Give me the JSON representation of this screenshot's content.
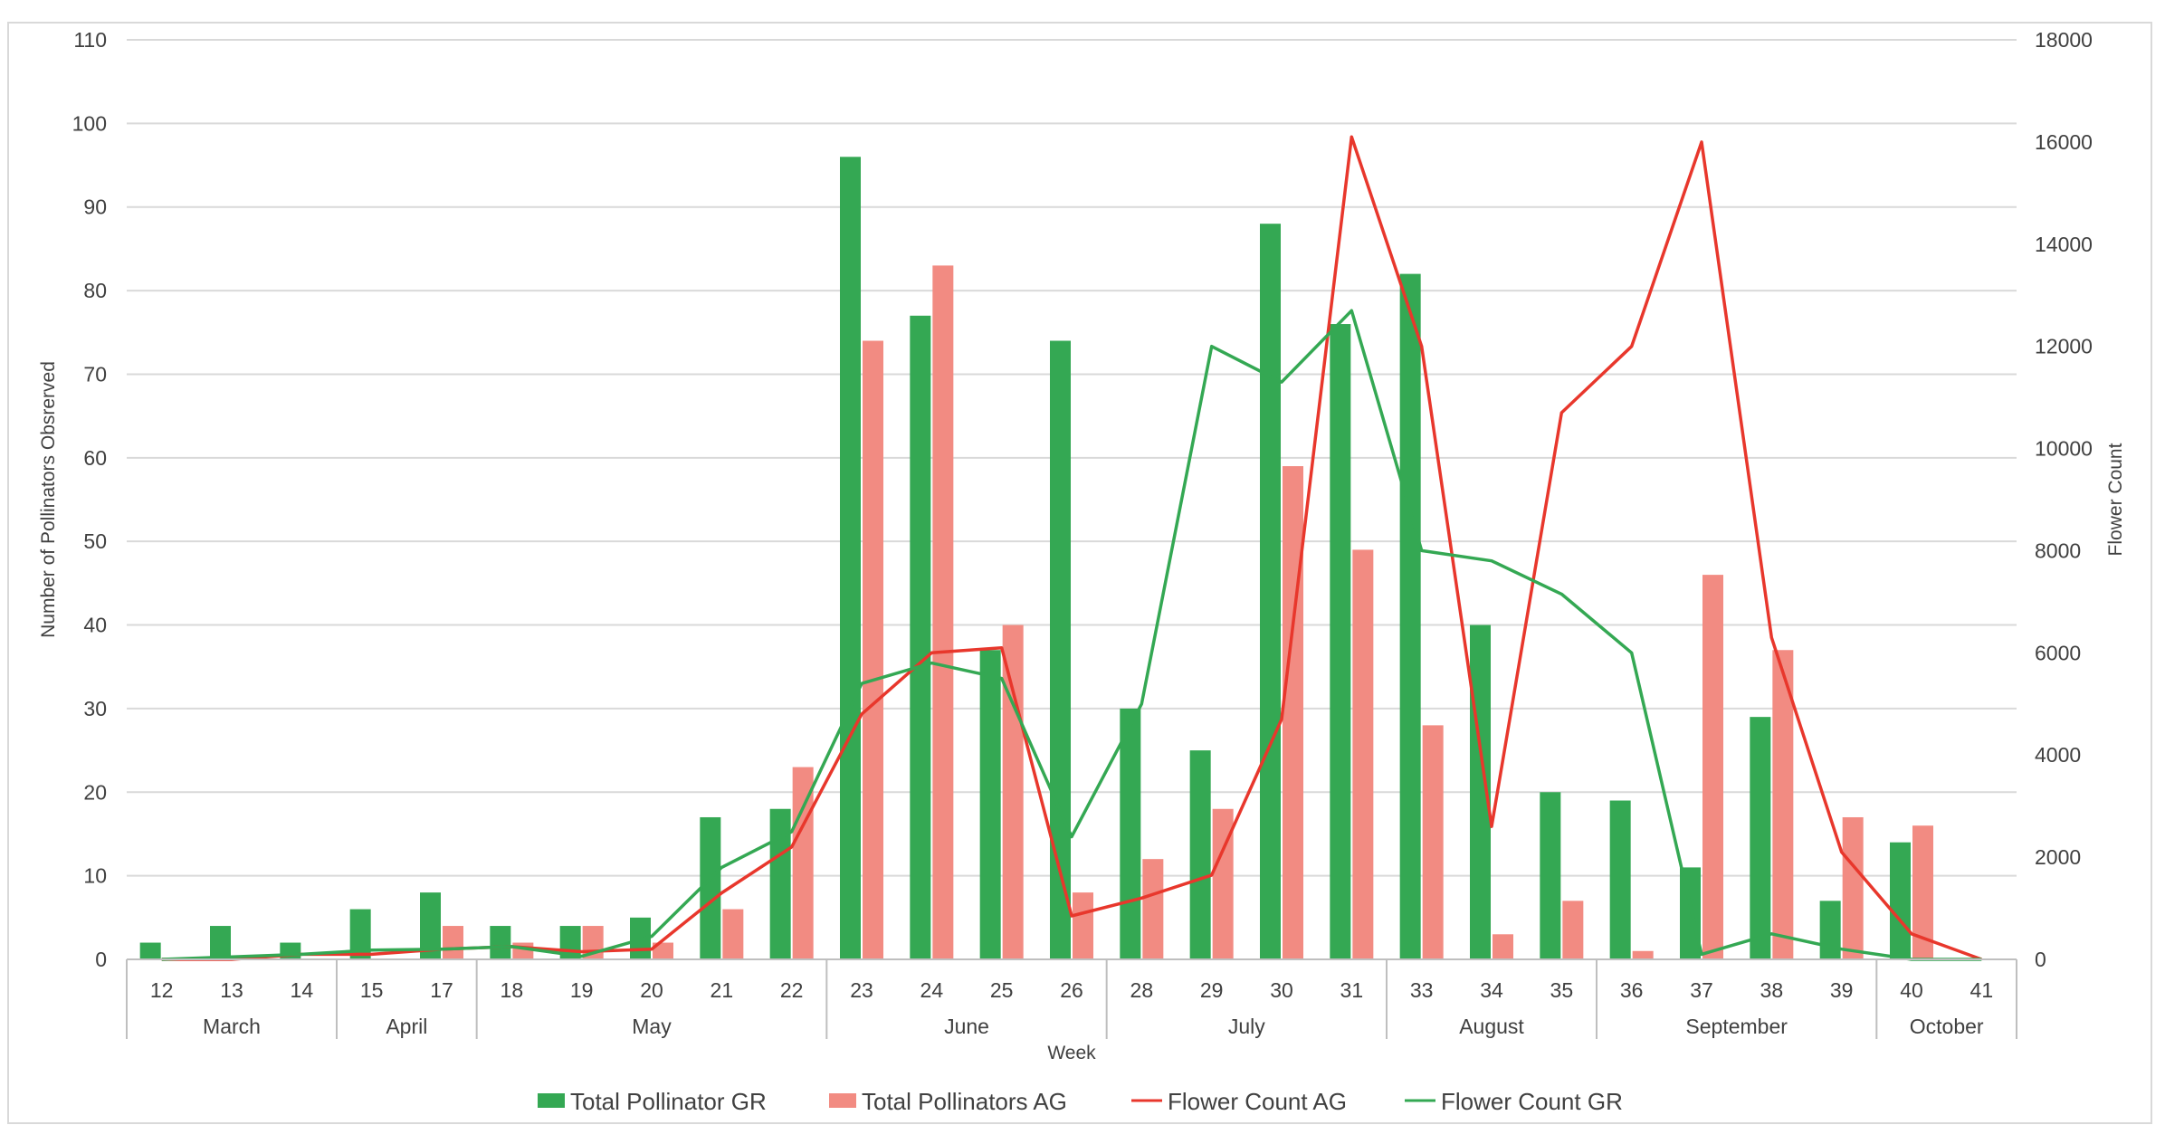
{
  "chart_data": {
    "type": "bar",
    "weeks": [
      "12",
      "13",
      "14",
      "15",
      "17",
      "18",
      "19",
      "20",
      "21",
      "22",
      "23",
      "24",
      "25",
      "26",
      "28",
      "29",
      "30",
      "31",
      "33",
      "34",
      "35",
      "36",
      "37",
      "38",
      "39",
      "40",
      "41"
    ],
    "months": [
      {
        "name": "March",
        "weeks": 3
      },
      {
        "name": "April",
        "weeks": 2
      },
      {
        "name": "May",
        "weeks": 5
      },
      {
        "name": "June",
        "weeks": 4
      },
      {
        "name": "July",
        "weeks": 4
      },
      {
        "name": "August",
        "weeks": 3
      },
      {
        "name": "September",
        "weeks": 4
      },
      {
        "name": "October",
        "weeks": 2
      }
    ],
    "xlabel": "Week",
    "ylabel_left": "Number of Pollinators Obsrerved",
    "ylabel_right": "Flower Count",
    "ylim_left": [
      0,
      110
    ],
    "ylim_right": [
      0,
      18000
    ],
    "yticks_left": [
      0,
      10,
      20,
      30,
      40,
      50,
      60,
      70,
      80,
      90,
      100,
      110
    ],
    "yticks_right": [
      0,
      2000,
      4000,
      6000,
      8000,
      10000,
      12000,
      14000,
      16000,
      18000
    ],
    "grid": true,
    "legend_position": "bottom",
    "series": [
      {
        "name": "Total Pollinator GR",
        "kind": "bar",
        "axis": "left",
        "color": "#34a853",
        "values": [
          2,
          4,
          2,
          6,
          8,
          4,
          4,
          5,
          17,
          18,
          96,
          77,
          37,
          74,
          30,
          25,
          88,
          76,
          82,
          40,
          20,
          19,
          11,
          29,
          7,
          14,
          0
        ]
      },
      {
        "name": "Total Pollinators AG",
        "kind": "bar",
        "axis": "left",
        "color": "#f28b82",
        "values": [
          0,
          0,
          0,
          0,
          4,
          2,
          4,
          2,
          6,
          23,
          74,
          83,
          40,
          8,
          12,
          18,
          59,
          49,
          28,
          3,
          7,
          1,
          46,
          37,
          17,
          16,
          0
        ]
      },
      {
        "name": "Flower Count AG",
        "kind": "line",
        "axis": "right",
        "color": "#e8372c",
        "values": [
          0,
          0,
          100,
          100,
          200,
          250,
          150,
          200,
          1300,
          2200,
          4800,
          6000,
          6100,
          850,
          1200,
          1650,
          4700,
          16100,
          12000,
          2600,
          10700,
          12000,
          16000,
          6300,
          2100,
          500,
          0
        ]
      },
      {
        "name": "Flower Count GR",
        "kind": "line",
        "axis": "right",
        "color": "#34a853",
        "values": [
          0,
          50,
          100,
          180,
          200,
          250,
          60,
          450,
          1800,
          2500,
          5400,
          5800,
          5500,
          2400,
          5000,
          12000,
          11300,
          12700,
          8000,
          7800,
          7150,
          6000,
          100,
          500,
          200,
          0,
          0
        ]
      }
    ]
  }
}
